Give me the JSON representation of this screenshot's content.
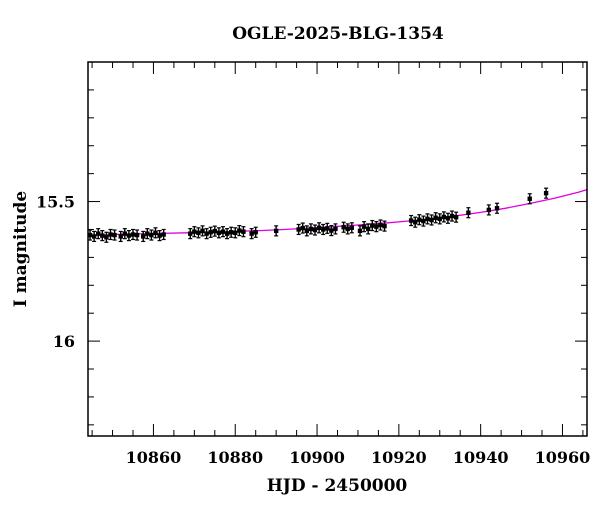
{
  "chart_data": {
    "type": "scatter",
    "title": "OGLE-2025-BLG-1354",
    "xlabel": "HJD - 2450000",
    "ylabel": "I magnitude",
    "xlim": [
      10844,
      10966
    ],
    "ylim": [
      16.34,
      15.0
    ],
    "y_inverted": true,
    "x_ticks": [
      10860,
      10880,
      10900,
      10920,
      10940,
      10960
    ],
    "y_ticks": [
      15.5,
      16
    ],
    "y_tick_labels": [
      "15.5",
      "16"
    ],
    "grid": false,
    "colors": {
      "points": "#000000",
      "model": "#e000e0",
      "axes": "#000000"
    },
    "model": {
      "name": "",
      "x": [
        10844,
        10850,
        10856,
        10862,
        10868,
        10874,
        10880,
        10886,
        10892,
        10898,
        10904,
        10910,
        10916,
        10922,
        10928,
        10934,
        10940,
        10946,
        10952,
        10958,
        10964,
        10966
      ],
      "y": [
        15.621,
        15.618,
        15.616,
        15.614,
        15.612,
        15.61,
        15.607,
        15.604,
        15.6,
        15.595,
        15.59,
        15.584,
        15.578,
        15.57,
        15.561,
        15.551,
        15.539,
        15.524,
        15.507,
        15.488,
        15.466,
        15.457
      ]
    },
    "series": [
      {
        "x": [
          10844.5,
          10845.5,
          10846.5,
          10847.5,
          10848.5,
          10849.5,
          10850.5,
          10852,
          10853,
          10854,
          10855,
          10856,
          10857.5,
          10858.5,
          10859.5,
          10860.5,
          10861.5,
          10862.5,
          10869,
          10870,
          10871,
          10872,
          10873,
          10874,
          10875,
          10876,
          10877,
          10878,
          10879,
          10880,
          10881,
          10882,
          10884,
          10885,
          10890,
          10895.5,
          10896.5,
          10897.5,
          10898.5,
          10899.5,
          10900.5,
          10901.5,
          10902.5,
          10903.5,
          10904.5,
          10906.5,
          10907.5,
          10908.5,
          10910.5,
          10911.5,
          10912.5,
          10913.5,
          10914.5,
          10915.5,
          10916.5,
          10923,
          10924,
          10925,
          10926,
          10927,
          10928,
          10929,
          10930,
          10931,
          10932,
          10933,
          10934,
          10937,
          10942,
          10944,
          10952,
          10956
        ],
        "y": [
          15.62,
          15.625,
          15.615,
          15.622,
          15.628,
          15.618,
          15.62,
          15.625,
          15.615,
          15.622,
          15.618,
          15.62,
          15.625,
          15.615,
          15.62,
          15.612,
          15.622,
          15.618,
          15.615,
          15.608,
          15.612,
          15.605,
          15.615,
          15.61,
          15.606,
          15.612,
          15.608,
          15.615,
          15.61,
          15.612,
          15.604,
          15.608,
          15.615,
          15.61,
          15.605,
          15.6,
          15.595,
          15.605,
          15.598,
          15.602,
          15.594,
          15.6,
          15.596,
          15.604,
          15.598,
          15.592,
          15.598,
          15.594,
          15.605,
          15.59,
          15.598,
          15.586,
          15.59,
          15.584,
          15.588,
          15.568,
          15.574,
          15.565,
          15.57,
          15.562,
          15.566,
          15.558,
          15.562,
          15.555,
          15.56,
          15.552,
          15.556,
          15.54,
          15.53,
          15.524,
          15.49,
          15.47
        ]
      }
    ]
  }
}
